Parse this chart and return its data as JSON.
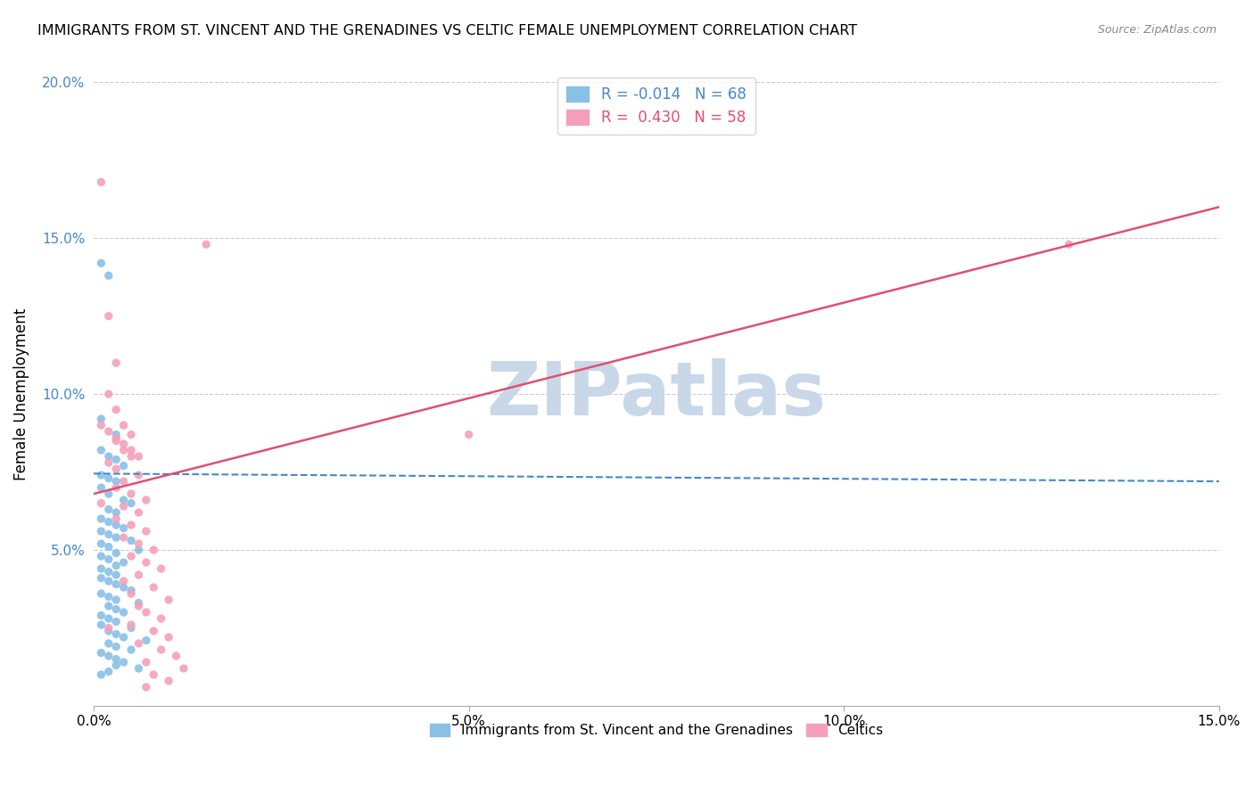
{
  "title": "IMMIGRANTS FROM ST. VINCENT AND THE GRENADINES VS CELTIC FEMALE UNEMPLOYMENT CORRELATION CHART",
  "source": "Source: ZipAtlas.com",
  "ylabel": "Female Unemployment",
  "xlim": [
    0.0,
    0.15
  ],
  "ylim": [
    0.0,
    0.2
  ],
  "yticks": [
    0.05,
    0.1,
    0.15,
    0.2
  ],
  "ytick_labels": [
    "5.0%",
    "10.0%",
    "15.0%",
    "20.0%"
  ],
  "xticks": [
    0.0,
    0.05,
    0.1,
    0.15
  ],
  "xtick_labels": [
    "0.0%",
    "5.0%",
    "10.0%",
    "15.0%"
  ],
  "blue_R": -0.014,
  "blue_N": 68,
  "pink_R": 0.43,
  "pink_N": 58,
  "blue_color": "#88c0e8",
  "pink_color": "#f5a0b8",
  "blue_line_color": "#4488cc",
  "pink_line_color": "#e05070",
  "legend_label_blue": "Immigrants from St. Vincent and the Grenadines",
  "legend_label_pink": "Celtics",
  "watermark": "ZIPatlas",
  "watermark_color": "#c8d8e8",
  "blue_line_x": [
    0.0,
    0.15
  ],
  "blue_line_y": [
    0.0745,
    0.072
  ],
  "pink_line_x": [
    0.0,
    0.15
  ],
  "pink_line_y": [
    0.068,
    0.16
  ],
  "blue_scatter_x": [
    0.001,
    0.002,
    0.001,
    0.003,
    0.001,
    0.002,
    0.003,
    0.004,
    0.001,
    0.002,
    0.003,
    0.001,
    0.002,
    0.004,
    0.005,
    0.002,
    0.003,
    0.001,
    0.002,
    0.003,
    0.004,
    0.001,
    0.002,
    0.003,
    0.005,
    0.001,
    0.002,
    0.006,
    0.003,
    0.001,
    0.002,
    0.004,
    0.003,
    0.001,
    0.002,
    0.003,
    0.001,
    0.002,
    0.003,
    0.004,
    0.005,
    0.001,
    0.002,
    0.003,
    0.006,
    0.002,
    0.003,
    0.004,
    0.001,
    0.002,
    0.003,
    0.001,
    0.005,
    0.002,
    0.003,
    0.004,
    0.007,
    0.002,
    0.003,
    0.005,
    0.001,
    0.002,
    0.003,
    0.004,
    0.003,
    0.006,
    0.002,
    0.001
  ],
  "blue_scatter_y": [
    0.142,
    0.138,
    0.092,
    0.087,
    0.082,
    0.08,
    0.079,
    0.077,
    0.074,
    0.073,
    0.072,
    0.07,
    0.068,
    0.066,
    0.065,
    0.063,
    0.062,
    0.06,
    0.059,
    0.058,
    0.057,
    0.056,
    0.055,
    0.054,
    0.053,
    0.052,
    0.051,
    0.05,
    0.049,
    0.048,
    0.047,
    0.046,
    0.045,
    0.044,
    0.043,
    0.042,
    0.041,
    0.04,
    0.039,
    0.038,
    0.037,
    0.036,
    0.035,
    0.034,
    0.033,
    0.032,
    0.031,
    0.03,
    0.029,
    0.028,
    0.027,
    0.026,
    0.025,
    0.024,
    0.023,
    0.022,
    0.021,
    0.02,
    0.019,
    0.018,
    0.017,
    0.016,
    0.015,
    0.014,
    0.013,
    0.012,
    0.011,
    0.01
  ],
  "pink_scatter_x": [
    0.001,
    0.015,
    0.002,
    0.003,
    0.002,
    0.003,
    0.004,
    0.005,
    0.003,
    0.004,
    0.005,
    0.002,
    0.003,
    0.006,
    0.004,
    0.003,
    0.005,
    0.007,
    0.004,
    0.006,
    0.003,
    0.005,
    0.007,
    0.004,
    0.006,
    0.008,
    0.005,
    0.007,
    0.009,
    0.006,
    0.004,
    0.008,
    0.005,
    0.01,
    0.006,
    0.007,
    0.009,
    0.005,
    0.008,
    0.01,
    0.006,
    0.009,
    0.011,
    0.007,
    0.012,
    0.008,
    0.01,
    0.007,
    0.13,
    0.001,
    0.002,
    0.003,
    0.004,
    0.05,
    0.005,
    0.006,
    0.001,
    0.002
  ],
  "pink_scatter_y": [
    0.168,
    0.148,
    0.125,
    0.11,
    0.1,
    0.095,
    0.09,
    0.087,
    0.085,
    0.082,
    0.08,
    0.078,
    0.076,
    0.074,
    0.072,
    0.07,
    0.068,
    0.066,
    0.064,
    0.062,
    0.06,
    0.058,
    0.056,
    0.054,
    0.052,
    0.05,
    0.048,
    0.046,
    0.044,
    0.042,
    0.04,
    0.038,
    0.036,
    0.034,
    0.032,
    0.03,
    0.028,
    0.026,
    0.024,
    0.022,
    0.02,
    0.018,
    0.016,
    0.014,
    0.012,
    0.01,
    0.008,
    0.006,
    0.148,
    0.09,
    0.088,
    0.086,
    0.084,
    0.087,
    0.082,
    0.08,
    0.065,
    0.025
  ]
}
